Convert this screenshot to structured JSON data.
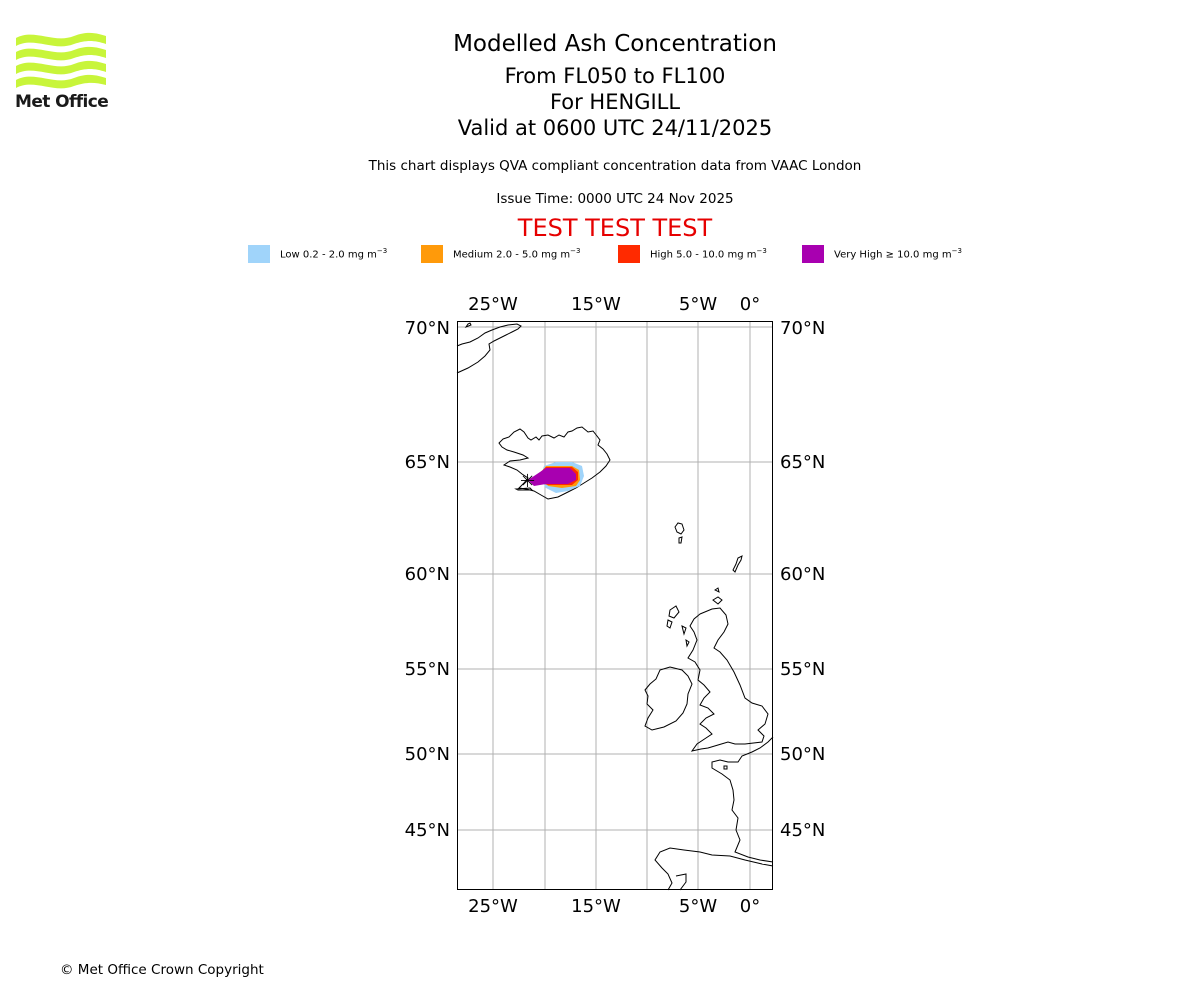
{
  "header": {
    "logo_text": "Met Office",
    "title": "Modelled Ash Concentration",
    "levels": "From FL050 to FL100",
    "volcano": "For HENGILL",
    "valid": "Valid at 0600 UTC 24/11/2025",
    "compliance": "This chart displays QVA compliant concentration data from VAAC London",
    "issue_time": "Issue Time: 0000 UTC 24 Nov 2025",
    "test_banner": "TEST TEST TEST"
  },
  "legend": [
    {
      "label": "Low 0.2 - 2.0 mg m",
      "color": "#a0d4fa"
    },
    {
      "label": "Medium 2.0 - 5.0 mg m",
      "color": "#ff9a0a"
    },
    {
      "label": "High 5.0 - 10.0 mg m",
      "color": "#ff2a00"
    },
    {
      "label": "Very High ≥ 10.0 mg m",
      "color": "#a800b0"
    }
  ],
  "legend_unit_sup": "−3",
  "map": {
    "lon_ticks": [
      "25°W",
      "15°W",
      "5°W",
      "0°"
    ],
    "lat_ticks": [
      "70°N",
      "65°N",
      "60°N",
      "55°N",
      "50°N",
      "45°N"
    ],
    "region": "Iceland, Faroe Islands, British Isles, France, Spain",
    "volcano_marker": "HENGILL"
  },
  "footer": "© Met Office Crown Copyright",
  "colors": {
    "logo": "#c8f53a",
    "test": "#e60000",
    "grid": "#b0b0b0"
  }
}
